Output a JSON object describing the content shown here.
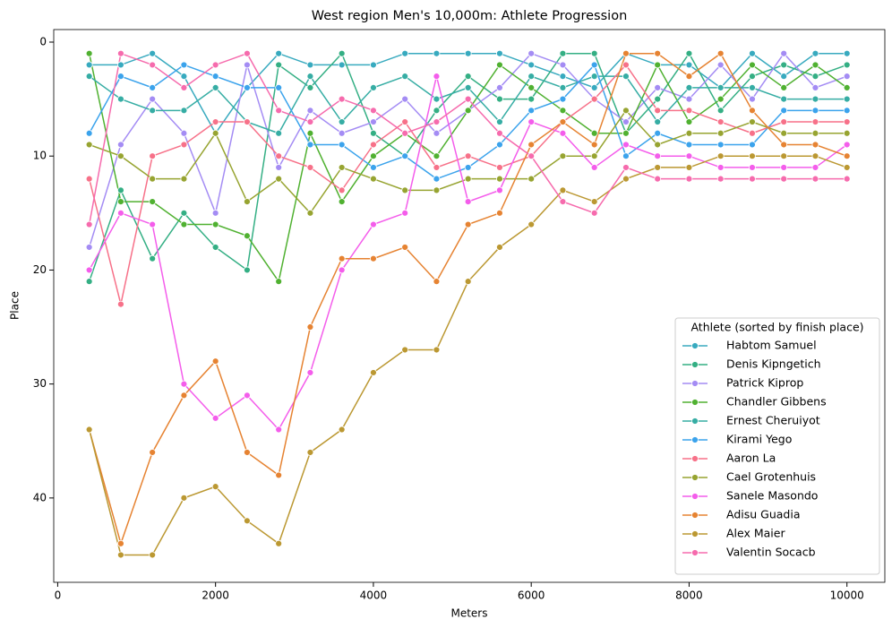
{
  "chart_data": {
    "type": "line",
    "title": "West region Men's 10,000m: Athlete Progression",
    "x_label": "Meters",
    "y_label": "Place",
    "x": [
      400,
      800,
      1200,
      1600,
      2000,
      2400,
      2800,
      3200,
      3600,
      4000,
      4400,
      4800,
      5200,
      5600,
      6000,
      6400,
      6800,
      7200,
      7600,
      8000,
      8400,
      8800,
      9200,
      9600,
      10000
    ],
    "xlim": [
      -50,
      10480
    ],
    "xticks": [
      0,
      2000,
      4000,
      6000,
      8000,
      10000
    ],
    "ylim": [
      47.4,
      -1.1
    ],
    "yticks": [
      0,
      10,
      20,
      30,
      40
    ],
    "y_inverted": true,
    "legend_title": "Athlete (sorted by finish place)",
    "legend_loc": "lower right",
    "grid": false,
    "series": [
      {
        "name": "Habtom Samuel",
        "color": "#38aabf",
        "values": [
          2,
          2,
          1,
          3,
          8,
          4,
          1,
          2,
          2,
          2,
          1,
          1,
          1,
          1,
          2,
          3,
          4,
          1,
          2,
          2,
          4,
          1,
          3,
          1,
          1
        ]
      },
      {
        "name": "Denis Kipngetich",
        "color": "#34af84",
        "values": [
          21,
          13,
          19,
          15,
          18,
          20,
          2,
          4,
          1,
          8,
          10,
          6,
          3,
          5,
          5,
          1,
          1,
          8,
          5,
          1,
          6,
          3,
          2,
          3,
          2
        ]
      },
      {
        "name": "Patrick Kiprop",
        "color": "#a48cf4",
        "values": [
          18,
          9,
          5,
          8,
          15,
          2,
          11,
          6,
          8,
          7,
          5,
          8,
          6,
          4,
          1,
          2,
          5,
          7,
          4,
          5,
          2,
          5,
          1,
          4,
          3
        ]
      },
      {
        "name": "Chandler Gibbens",
        "color": "#50b131",
        "values": [
          1,
          14,
          14,
          16,
          16,
          17,
          21,
          8,
          14,
          10,
          8,
          10,
          6,
          2,
          4,
          6,
          8,
          8,
          2,
          7,
          5,
          2,
          4,
          2,
          4
        ]
      },
      {
        "name": "Ernest Cheruiyot",
        "color": "#36ada4",
        "values": [
          3,
          5,
          6,
          6,
          4,
          7,
          8,
          3,
          7,
          4,
          3,
          5,
          4,
          7,
          3,
          4,
          3,
          3,
          7,
          4,
          4,
          4,
          5,
          5,
          5
        ]
      },
      {
        "name": "Kirami Yego",
        "color": "#3ba3ec",
        "values": [
          8,
          3,
          4,
          2,
          3,
          4,
          4,
          9,
          9,
          11,
          10,
          12,
          11,
          9,
          6,
          5,
          2,
          10,
          8,
          9,
          9,
          9,
          6,
          6,
          6
        ]
      },
      {
        "name": "Aaron La",
        "color": "#f77189",
        "values": [
          12,
          23,
          10,
          9,
          7,
          7,
          10,
          11,
          13,
          9,
          7,
          11,
          10,
          11,
          10,
          7,
          5,
          2,
          6,
          6,
          7,
          8,
          7,
          7,
          7
        ]
      },
      {
        "name": "Cael Grotenhuis",
        "color": "#97a431",
        "values": [
          9,
          10,
          12,
          12,
          8,
          14,
          12,
          15,
          11,
          12,
          13,
          13,
          12,
          12,
          12,
          10,
          10,
          6,
          9,
          8,
          8,
          7,
          8,
          8,
          8
        ]
      },
      {
        "name": "Sanele Masondo",
        "color": "#f45deb",
        "values": [
          20,
          15,
          16,
          30,
          33,
          31,
          34,
          29,
          20,
          16,
          15,
          3,
          14,
          13,
          7,
          8,
          11,
          9,
          10,
          10,
          11,
          11,
          11,
          11,
          9
        ]
      },
      {
        "name": "Adisu Guadia",
        "color": "#e68332",
        "values": [
          34,
          44,
          36,
          31,
          28,
          36,
          38,
          25,
          19,
          19,
          18,
          21,
          16,
          15,
          9,
          7,
          9,
          1,
          1,
          3,
          1,
          6,
          9,
          9,
          10
        ]
      },
      {
        "name": "Alex Maier",
        "color": "#bb9832",
        "values": [
          34,
          45,
          45,
          40,
          39,
          42,
          44,
          36,
          34,
          29,
          27,
          27,
          21,
          18,
          16,
          13,
          14,
          12,
          11,
          11,
          10,
          10,
          10,
          10,
          11
        ]
      },
      {
        "name": "Valentin Socacb",
        "color": "#f66bad",
        "values": [
          16,
          1,
          2,
          4,
          2,
          1,
          6,
          7,
          5,
          6,
          8,
          7,
          5,
          8,
          10,
          14,
          15,
          11,
          12,
          12,
          12,
          12,
          12,
          12,
          12
        ]
      }
    ]
  }
}
